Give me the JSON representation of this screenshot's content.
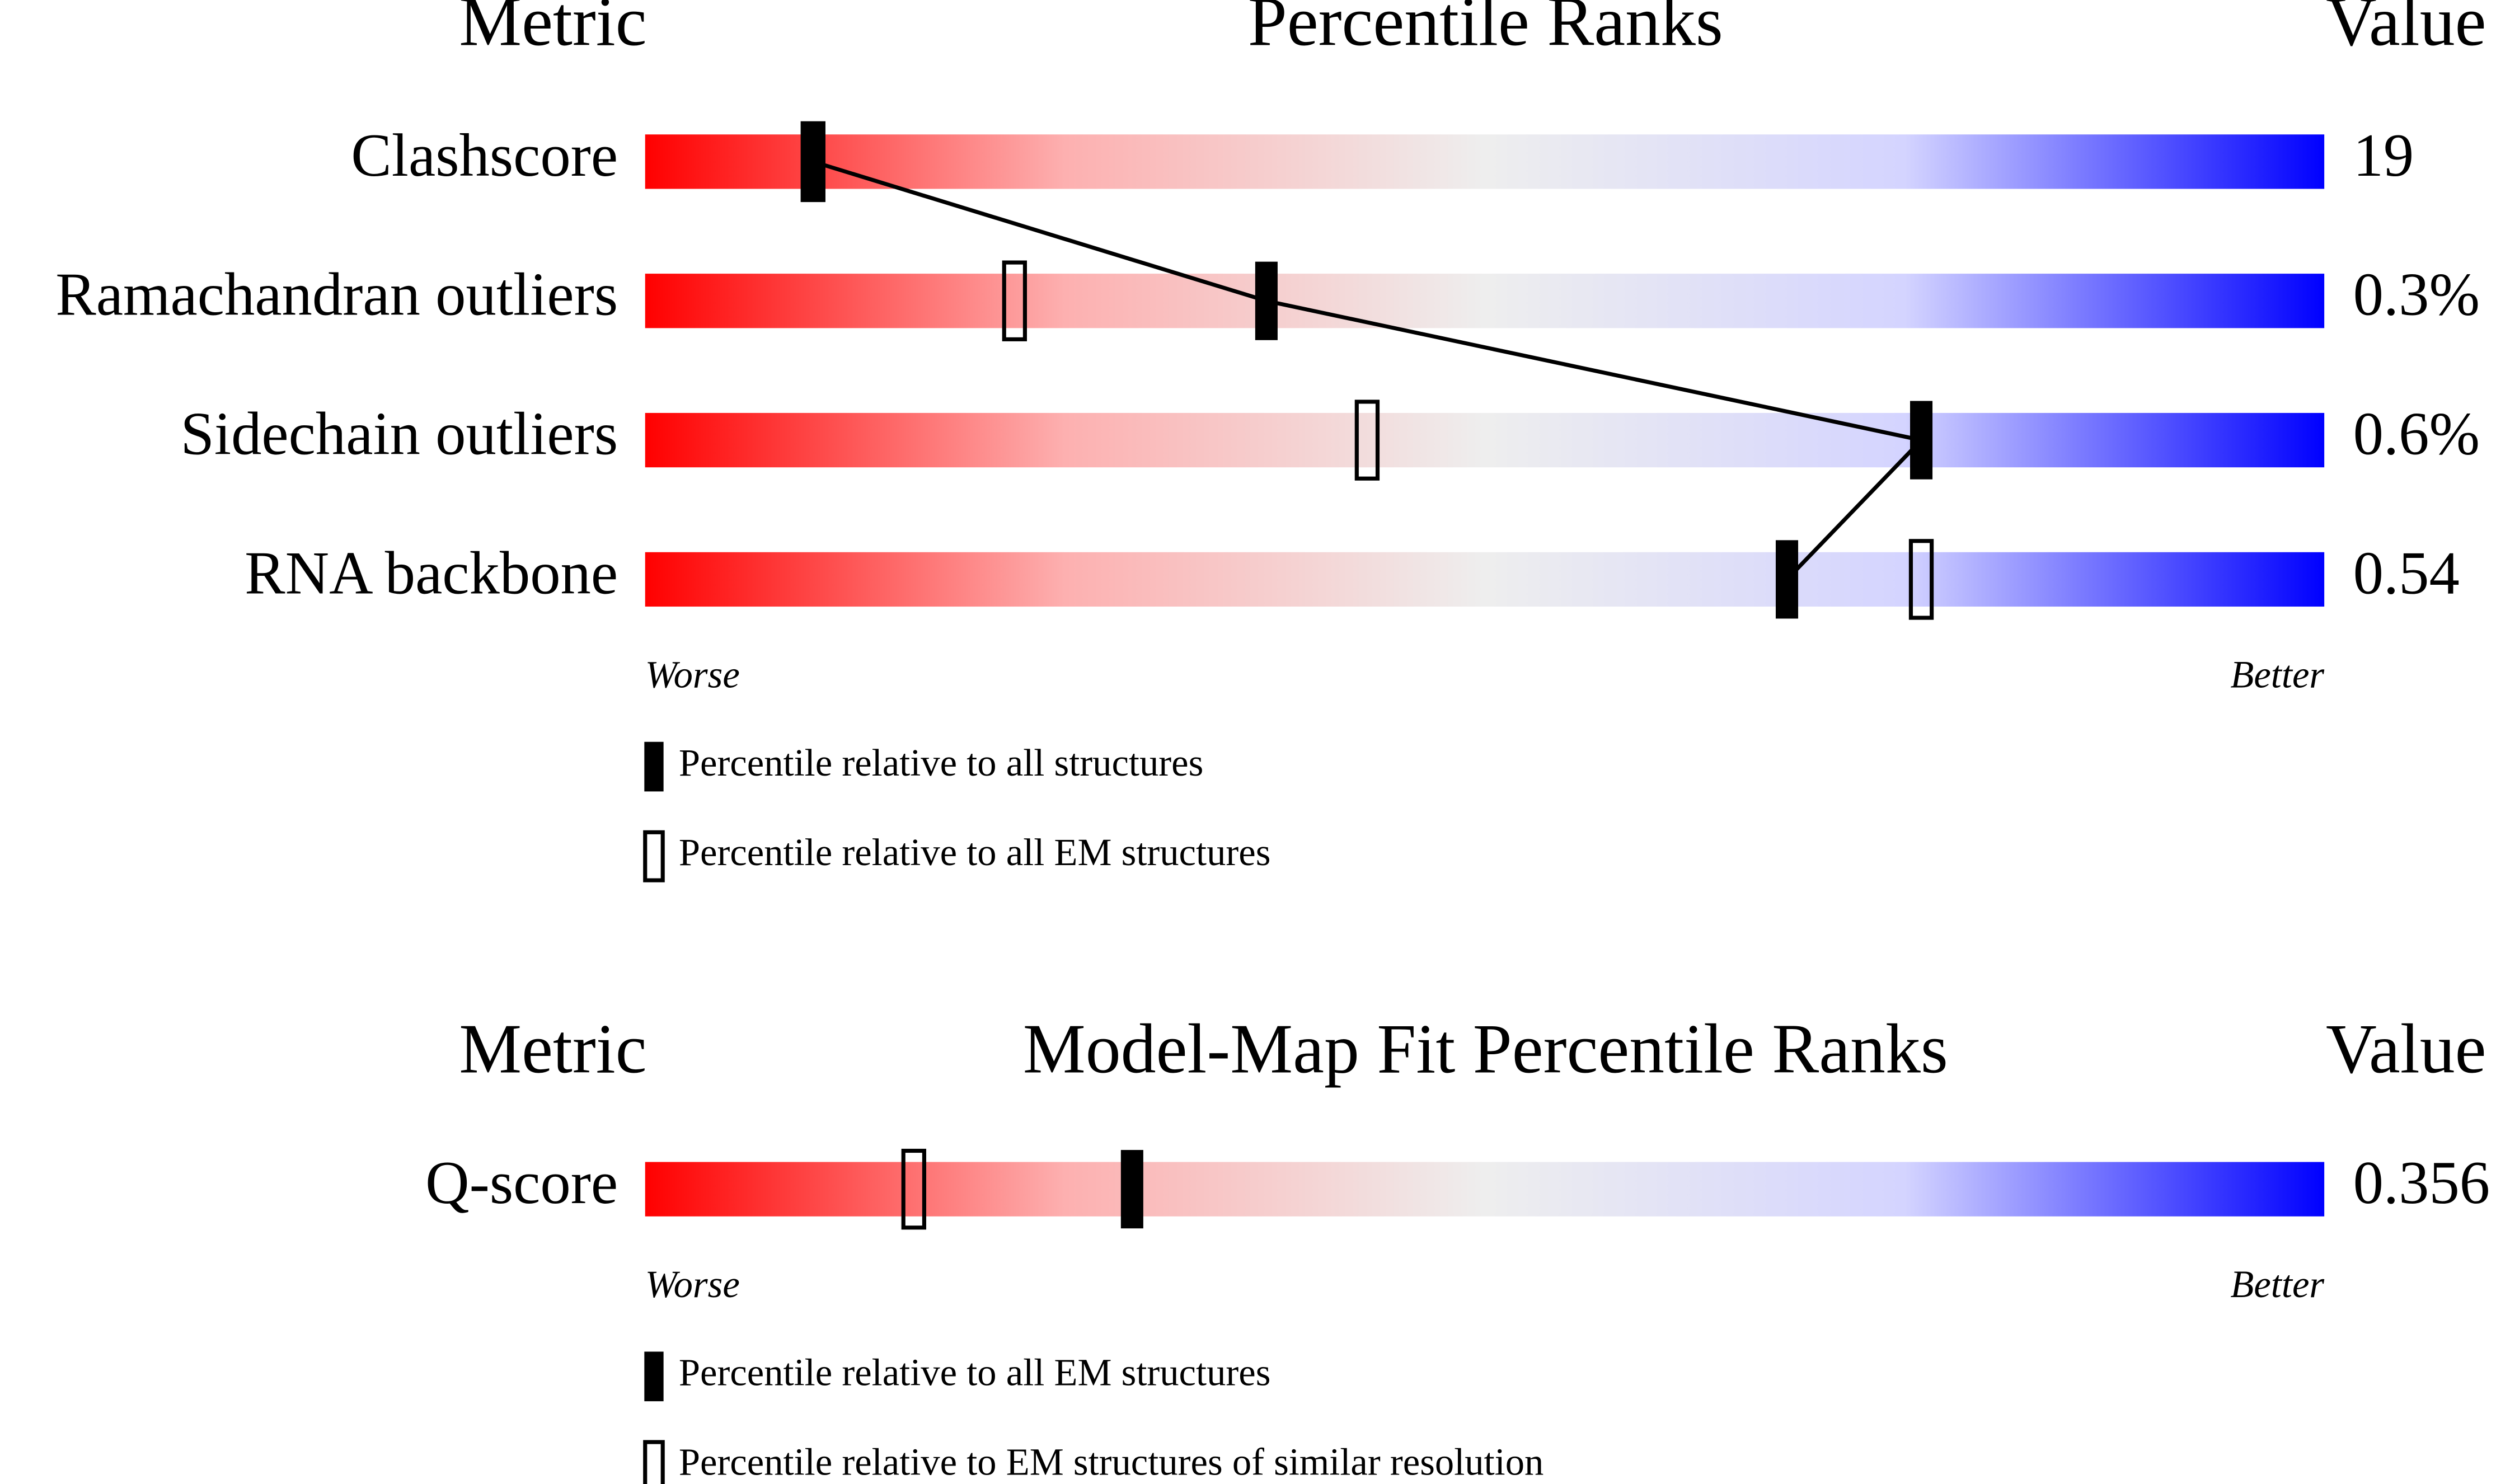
{
  "chart_data": [
    {
      "type": "slider",
      "title": "Percentile Ranks",
      "metric_header": "Metric",
      "value_header": "Value",
      "categories": [
        "Clashscore",
        "Ramachandran outliers",
        "Sidechain outliers",
        "RNA backbone"
      ],
      "metric_values": [
        "19",
        "0.3%",
        "0.6%",
        "0.54"
      ],
      "series": [
        {
          "name": "Percentile relative to all structures",
          "style": "filled",
          "color": "#000000",
          "values": [
            10,
            37,
            76,
            68
          ]
        },
        {
          "name": "Percentile relative to all EM structures",
          "style": "outline",
          "color": "#000000",
          "values": [
            10,
            22,
            43,
            76
          ]
        }
      ],
      "connect": true,
      "xlim": [
        0,
        100
      ],
      "worse_label": "Worse",
      "better_label": "Better"
    },
    {
      "type": "slider",
      "title": "Model-Map Fit Percentile Ranks",
      "metric_header": "Metric",
      "value_header": "Value",
      "categories": [
        "Q-score"
      ],
      "metric_values": [
        "0.356"
      ],
      "series": [
        {
          "name": "Percentile relative to all EM structures",
          "style": "filled",
          "color": "#000000",
          "values": [
            29
          ]
        },
        {
          "name": "Percentile relative to EM structures of similar resolution",
          "style": "outline",
          "color": "#000000",
          "values": [
            16
          ]
        }
      ],
      "connect": false,
      "xlim": [
        0,
        100
      ],
      "worse_label": "Worse",
      "better_label": "Better"
    }
  ]
}
